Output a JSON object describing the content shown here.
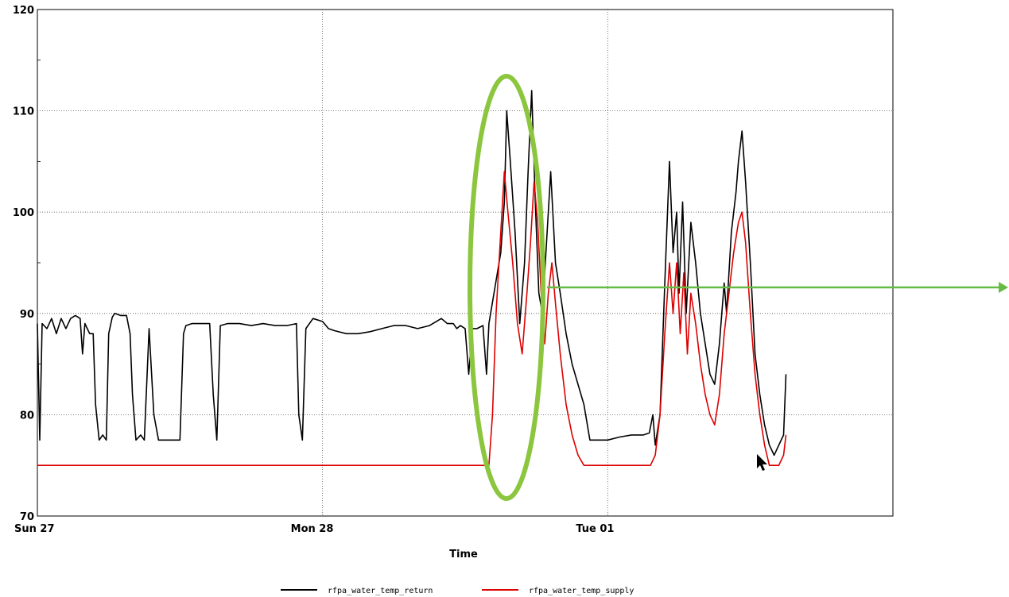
{
  "chart_data": {
    "type": "line",
    "xlabel": "Time",
    "ylabel": "",
    "ylim": [
      70,
      120
    ],
    "xlim": [
      0,
      72
    ],
    "y_ticks": [
      70,
      80,
      90,
      100,
      110,
      120
    ],
    "x_ticks": [
      {
        "value": 0,
        "label": "Sun 27"
      },
      {
        "value": 24,
        "label": "Mon 28"
      },
      {
        "value": 48,
        "label": "Tue 01"
      }
    ],
    "grid": true,
    "legend_position": "bottom",
    "series": [
      {
        "name": "rfpa_water_temp_return",
        "color": "#000000",
        "points": [
          [
            0,
            89
          ],
          [
            0.2,
            77.5
          ],
          [
            0.4,
            89
          ],
          [
            0.8,
            88.5
          ],
          [
            1.2,
            89.5
          ],
          [
            1.6,
            88
          ],
          [
            2.0,
            89.5
          ],
          [
            2.4,
            88.5
          ],
          [
            2.8,
            89.5
          ],
          [
            3.2,
            89.8
          ],
          [
            3.6,
            89.5
          ],
          [
            3.8,
            86
          ],
          [
            4.0,
            89
          ],
          [
            4.4,
            88
          ],
          [
            4.7,
            88
          ],
          [
            4.9,
            81
          ],
          [
            5.2,
            77.5
          ],
          [
            5.5,
            78
          ],
          [
            5.8,
            77.5
          ],
          [
            6.0,
            88
          ],
          [
            6.3,
            89.6
          ],
          [
            6.5,
            90
          ],
          [
            7.0,
            89.8
          ],
          [
            7.5,
            89.8
          ],
          [
            7.8,
            88
          ],
          [
            8.0,
            82
          ],
          [
            8.3,
            77.5
          ],
          [
            8.7,
            78
          ],
          [
            9.0,
            77.5
          ],
          [
            9.4,
            88.5
          ],
          [
            9.8,
            80
          ],
          [
            10.2,
            77.5
          ],
          [
            11.0,
            77.5
          ],
          [
            12.0,
            77.5
          ],
          [
            12.3,
            88
          ],
          [
            12.5,
            88.8
          ],
          [
            13.0,
            89
          ],
          [
            14.0,
            89
          ],
          [
            14.5,
            89
          ],
          [
            14.8,
            82
          ],
          [
            15.1,
            77.5
          ],
          [
            15.4,
            88.8
          ],
          [
            16.0,
            89
          ],
          [
            17.0,
            89
          ],
          [
            18.0,
            88.8
          ],
          [
            19.0,
            89
          ],
          [
            20.0,
            88.8
          ],
          [
            21.0,
            88.8
          ],
          [
            21.8,
            89
          ],
          [
            22.0,
            80
          ],
          [
            22.3,
            77.5
          ],
          [
            22.6,
            88.5
          ],
          [
            23.2,
            89.5
          ],
          [
            24.0,
            89.2
          ],
          [
            24.5,
            88.5
          ],
          [
            25.0,
            88.3
          ],
          [
            26.0,
            88
          ],
          [
            27.0,
            88
          ],
          [
            28.0,
            88.2
          ],
          [
            29.0,
            88.5
          ],
          [
            30.0,
            88.8
          ],
          [
            31.0,
            88.8
          ],
          [
            32.0,
            88.5
          ],
          [
            33.0,
            88.8
          ],
          [
            34.0,
            89.5
          ],
          [
            34.5,
            89
          ],
          [
            35.0,
            89
          ],
          [
            35.3,
            88.5
          ],
          [
            35.6,
            88.8
          ],
          [
            36.0,
            88.5
          ],
          [
            36.3,
            84
          ],
          [
            36.6,
            88.5
          ],
          [
            37.0,
            88.5
          ],
          [
            37.5,
            88.8
          ],
          [
            37.8,
            84
          ],
          [
            38.0,
            89
          ],
          [
            39.0,
            96
          ],
          [
            39.3,
            101
          ],
          [
            39.5,
            110
          ],
          [
            39.8,
            105
          ],
          [
            40.2,
            98
          ],
          [
            40.6,
            89
          ],
          [
            41.0,
            95
          ],
          [
            41.3,
            104
          ],
          [
            41.6,
            112
          ],
          [
            41.9,
            101
          ],
          [
            42.2,
            92
          ],
          [
            42.5,
            90
          ],
          [
            42.8,
            96
          ],
          [
            43.2,
            104
          ],
          [
            43.6,
            95
          ],
          [
            44.0,
            92
          ],
          [
            44.5,
            88
          ],
          [
            45.0,
            85
          ],
          [
            46.0,
            81
          ],
          [
            46.5,
            77.5
          ],
          [
            47.0,
            77.5
          ],
          [
            48.0,
            77.5
          ],
          [
            49.0,
            77.8
          ],
          [
            50.0,
            78
          ],
          [
            51.0,
            78
          ],
          [
            51.5,
            78.2
          ],
          [
            51.8,
            80
          ],
          [
            52.0,
            77
          ],
          [
            52.4,
            80
          ],
          [
            52.8,
            93
          ],
          [
            53.2,
            105
          ],
          [
            53.5,
            96
          ],
          [
            53.8,
            100
          ],
          [
            54.0,
            92
          ],
          [
            54.3,
            101
          ],
          [
            54.6,
            90
          ],
          [
            55.0,
            99
          ],
          [
            55.4,
            95
          ],
          [
            55.8,
            90
          ],
          [
            56.2,
            87
          ],
          [
            56.6,
            84
          ],
          [
            57.0,
            83
          ],
          [
            57.4,
            87
          ],
          [
            57.8,
            93
          ],
          [
            58.0,
            90
          ],
          [
            58.4,
            98
          ],
          [
            58.8,
            102
          ],
          [
            59.0,
            105
          ],
          [
            59.3,
            108
          ],
          [
            59.6,
            103
          ],
          [
            60.0,
            95
          ],
          [
            60.4,
            86
          ],
          [
            60.8,
            82
          ],
          [
            61.2,
            79
          ],
          [
            61.6,
            77
          ],
          [
            62.0,
            76
          ],
          [
            62.4,
            77
          ],
          [
            62.8,
            78
          ],
          [
            63.0,
            84
          ]
        ]
      },
      {
        "name": "rfpa_water_temp_supply",
        "color": "#dd0000",
        "points": [
          [
            0,
            75
          ],
          [
            1,
            75
          ],
          [
            2,
            75
          ],
          [
            3,
            75
          ],
          [
            4,
            75
          ],
          [
            5,
            75
          ],
          [
            6,
            75
          ],
          [
            7,
            75
          ],
          [
            8,
            75
          ],
          [
            9,
            75
          ],
          [
            10,
            75
          ],
          [
            11,
            75
          ],
          [
            12,
            75
          ],
          [
            13,
            75
          ],
          [
            14,
            75
          ],
          [
            15,
            75
          ],
          [
            16,
            75
          ],
          [
            17,
            75
          ],
          [
            18,
            75
          ],
          [
            19,
            75
          ],
          [
            20,
            75
          ],
          [
            21,
            75
          ],
          [
            22,
            75
          ],
          [
            23,
            75
          ],
          [
            24,
            75
          ],
          [
            25,
            75
          ],
          [
            26,
            75
          ],
          [
            27,
            75
          ],
          [
            28,
            75
          ],
          [
            29,
            75
          ],
          [
            30,
            75
          ],
          [
            31,
            75
          ],
          [
            32,
            75
          ],
          [
            33,
            75
          ],
          [
            34,
            75
          ],
          [
            35,
            75
          ],
          [
            36,
            75
          ],
          [
            37,
            75
          ],
          [
            37.5,
            75
          ],
          [
            38.0,
            75
          ],
          [
            38.3,
            80
          ],
          [
            38.6,
            90
          ],
          [
            39.0,
            98
          ],
          [
            39.3,
            104
          ],
          [
            39.6,
            100
          ],
          [
            40.0,
            95
          ],
          [
            40.4,
            89
          ],
          [
            40.8,
            86
          ],
          [
            41.2,
            92
          ],
          [
            41.5,
            97
          ],
          [
            41.8,
            103
          ],
          [
            42.1,
            99
          ],
          [
            42.4,
            92
          ],
          [
            42.7,
            87
          ],
          [
            43.0,
            92
          ],
          [
            43.3,
            95
          ],
          [
            43.6,
            91
          ],
          [
            44.0,
            86
          ],
          [
            44.5,
            81
          ],
          [
            45.0,
            78
          ],
          [
            45.5,
            76
          ],
          [
            46.0,
            75
          ],
          [
            47.0,
            75
          ],
          [
            48.0,
            75
          ],
          [
            49.0,
            75
          ],
          [
            50.0,
            75
          ],
          [
            51.0,
            75
          ],
          [
            51.6,
            75
          ],
          [
            52.0,
            76
          ],
          [
            52.4,
            80
          ],
          [
            52.8,
            88
          ],
          [
            53.2,
            95
          ],
          [
            53.5,
            90
          ],
          [
            53.8,
            95
          ],
          [
            54.1,
            88
          ],
          [
            54.4,
            94
          ],
          [
            54.7,
            86
          ],
          [
            55.0,
            92
          ],
          [
            55.4,
            89
          ],
          [
            55.8,
            85
          ],
          [
            56.2,
            82
          ],
          [
            56.6,
            80
          ],
          [
            57.0,
            79
          ],
          [
            57.4,
            82
          ],
          [
            57.8,
            88
          ],
          [
            58.2,
            92
          ],
          [
            58.6,
            96
          ],
          [
            59.0,
            99
          ],
          [
            59.3,
            100
          ],
          [
            59.6,
            97
          ],
          [
            60.0,
            90
          ],
          [
            60.4,
            84
          ],
          [
            60.8,
            80
          ],
          [
            61.2,
            77
          ],
          [
            61.6,
            75
          ],
          [
            62.0,
            75
          ],
          [
            62.4,
            75
          ],
          [
            62.8,
            76
          ],
          [
            63.0,
            78
          ]
        ]
      }
    ]
  }
}
